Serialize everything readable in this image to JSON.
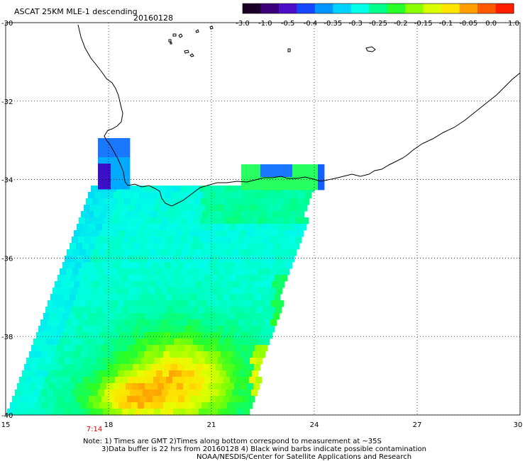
{
  "header": {
    "title": "ASCAT 25KM MLE-1 descending",
    "date": "20160128"
  },
  "colorbar": {
    "tick_labels": [
      "-3.0",
      "-1.0",
      "-0.5",
      "-0.4",
      "-0.35",
      "-0.3",
      "-0.25",
      "-0.2",
      "-0.15",
      "-0.1",
      "-0.05",
      "0.0",
      "1.0"
    ],
    "colors": [
      "#1a0026",
      "#3c0078",
      "#4b10c8",
      "#1448ff",
      "#0096ff",
      "#00d2ff",
      "#00ffe6",
      "#00ff8c",
      "#28ff28",
      "#8cff00",
      "#dcff00",
      "#ffe600",
      "#ffa000",
      "#ff5a00",
      "#ff1e00"
    ]
  },
  "map": {
    "lon_range": [
      15,
      30
    ],
    "lat_range": [
      -40,
      -30
    ],
    "lon_ticks": [
      "15",
      "18",
      "21",
      "24",
      "27",
      "30"
    ],
    "lat_ticks": [
      "-30",
      "-32",
      "-34",
      "-36",
      "-38",
      "-40"
    ],
    "time_label": "7:14",
    "time_color": "#e00000",
    "grid": "dotted"
  },
  "notes": {
    "line1": "Note: 1) Times are GMT 2)Times along bottom correspond to measurement at ~35S",
    "line2": "3)Data buffer is 22 hrs from 20160128 4) Black wind barbs indicate possible contamination",
    "line3": "NOAA/NESDIS/Center for Satellite Applications and Research"
  }
}
